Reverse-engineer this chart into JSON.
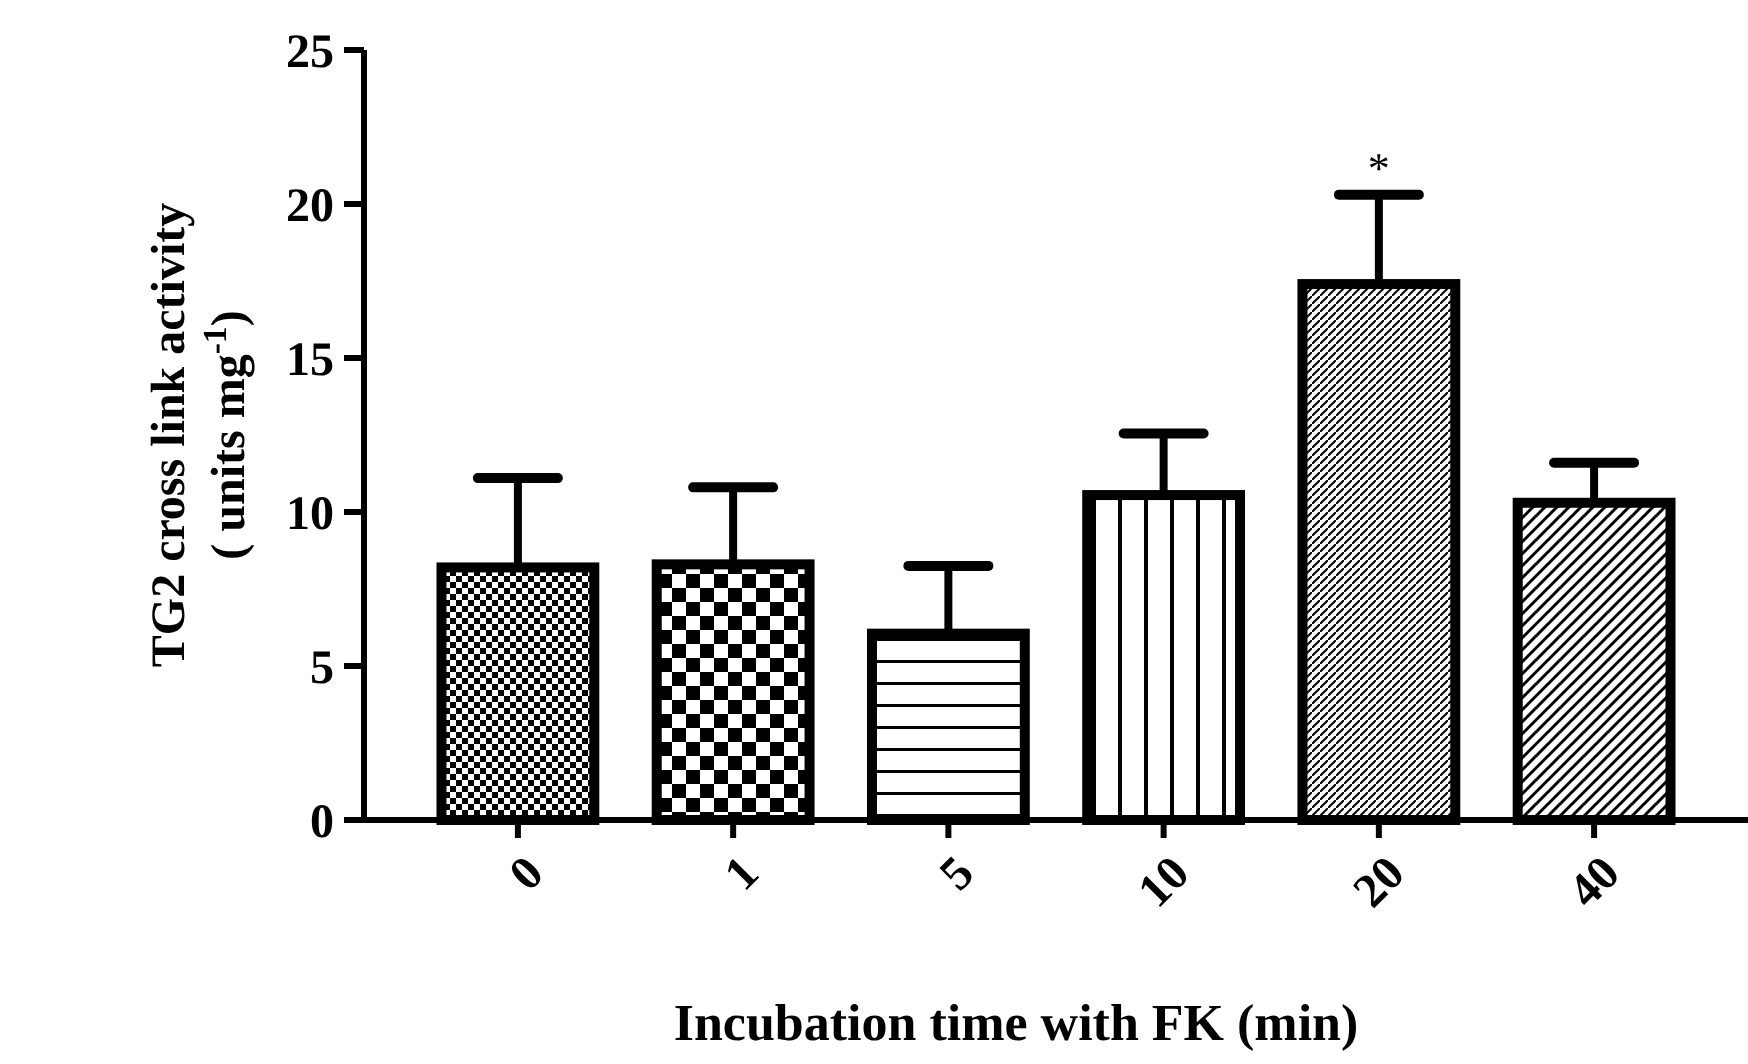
{
  "chart_data": {
    "type": "bar",
    "xlabel": "Incubation time with FK (min)",
    "ylabel": "TG2 cross link activity\n( units mg$^{-1}$)",
    "categories": [
      "0",
      "1",
      "5",
      "10",
      "20",
      "40"
    ],
    "values": [
      8.2,
      8.3,
      6.05,
      10.55,
      17.4,
      10.3
    ],
    "errors": [
      2.9,
      2.5,
      2.2,
      2.0,
      2.9,
      1.3
    ],
    "color": "#000000",
    "ylim": [
      0,
      25
    ],
    "yticks": [
      0,
      5,
      10,
      15,
      20,
      25
    ],
    "annotations": [
      {
        "text": "*",
        "x": "20",
        "y": 20.3
      }
    ]
  }
}
